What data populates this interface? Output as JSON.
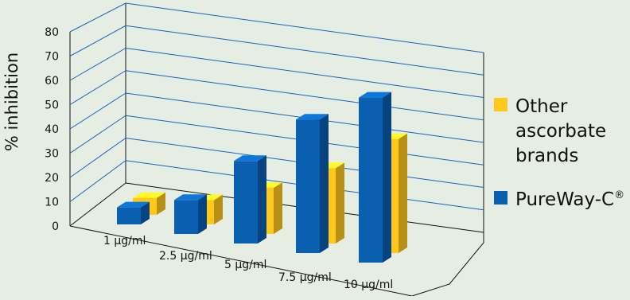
{
  "chart_data": {
    "type": "bar",
    "ylabel": "% inhibition",
    "ylim": [
      0,
      80
    ],
    "yticks": [
      0,
      10,
      20,
      30,
      40,
      50,
      60,
      70,
      80
    ],
    "categories": [
      "1 µg/ml",
      "2.5 µg/ml",
      "5 µg/ml",
      "7.5 µg/ml",
      "10 µg/ml"
    ],
    "series": [
      {
        "name": "PureWay-C®",
        "values": [
          7,
          14,
          34,
          55,
          68
        ],
        "color": "#0a5fb0"
      },
      {
        "name": "Other ascorbate brands",
        "values": [
          7,
          10,
          19,
          31,
          47
        ],
        "color": "#ffc81f"
      }
    ],
    "legend": {
      "position": "right",
      "items": [
        {
          "lines": [
            "Other",
            "ascorbate",
            "brands"
          ],
          "color": "#ffc81f"
        },
        {
          "lines": [
            "PureWay-C®"
          ],
          "color": "#0a5fb0"
        }
      ]
    },
    "grid": true,
    "projection": "3d"
  }
}
